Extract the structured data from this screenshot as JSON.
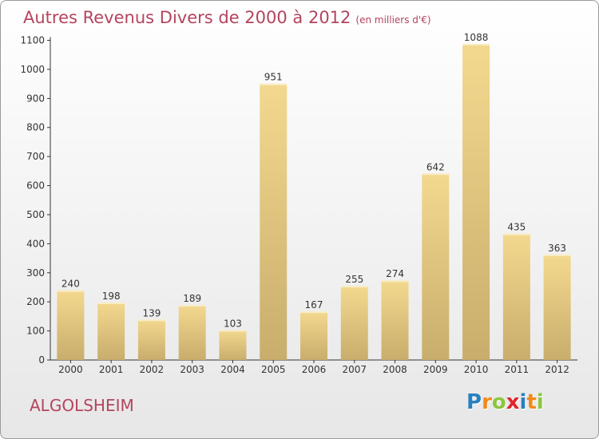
{
  "chart_data": {
    "type": "bar",
    "title": "Autres Revenus Divers de 2000 à 2012",
    "subtitle": "(en milliers d'€)",
    "categories": [
      "2000",
      "2001",
      "2002",
      "2003",
      "2004",
      "2005",
      "2006",
      "2007",
      "2008",
      "2009",
      "2010",
      "2011",
      "2012"
    ],
    "values": [
      240,
      198,
      139,
      189,
      103,
      951,
      167,
      255,
      274,
      642,
      1088,
      435,
      363
    ],
    "ylim": [
      0,
      1100
    ],
    "yticks": [
      0,
      100,
      200,
      300,
      400,
      500,
      600,
      700,
      800,
      900,
      1000,
      1100
    ],
    "grid": false,
    "legend": "none",
    "colors": {
      "bar_light": "#f3d98f",
      "bar_dark": "#c8ad6c",
      "text": "#b4445e"
    }
  },
  "commune": "ALGOLSHEIM",
  "brand": {
    "letters": [
      "P",
      "r",
      "o",
      "x",
      "i",
      "t",
      "i"
    ],
    "colors": [
      "#2a7fc0",
      "#f18a1c",
      "#8cc63e",
      "#e0262d",
      "#2a7fc0",
      "#f18a1c",
      "#8cc63e"
    ]
  }
}
